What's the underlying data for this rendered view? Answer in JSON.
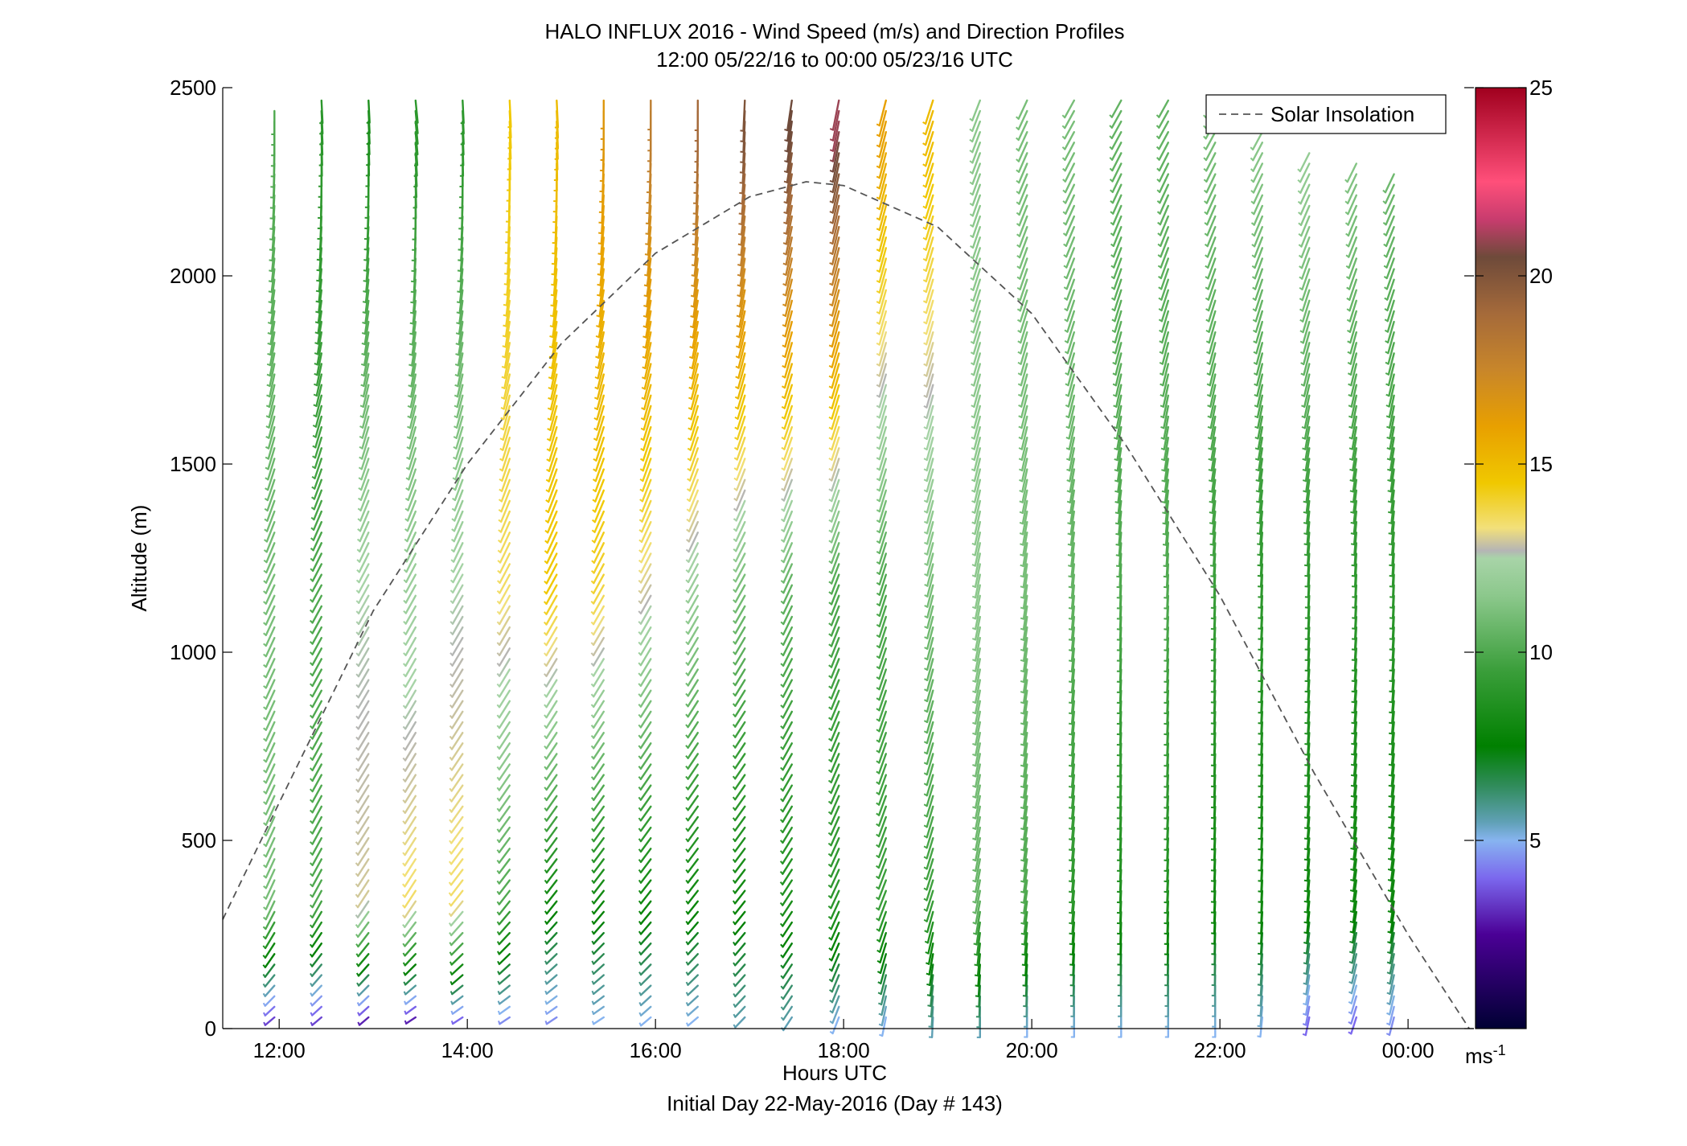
{
  "chart_data": {
    "type": "wind-barb-profile",
    "title": "HALO INFLUX 2016 - Wind Speed (m/s) and Direction Profiles",
    "subtitle": "12:00 05/22/16 to 00:00 05/23/16  UTC",
    "xlabel": "Hours UTC",
    "xsublabel": "Initial Day 22-May-2016 (Day # 143)",
    "ylabel": "Altitude (m)",
    "xlim": [
      11.4,
      24.7
    ],
    "ylim": [
      0,
      2500
    ],
    "xticks": [
      12,
      14,
      16,
      18,
      20,
      22,
      24
    ],
    "xtick_labels": [
      "12:00",
      "14:00",
      "16:00",
      "18:00",
      "20:00",
      "22:00",
      "00:00"
    ],
    "yticks": [
      0,
      500,
      1000,
      1500,
      2000,
      2500
    ],
    "ytick_labels": [
      "0",
      "500",
      "1000",
      "1500",
      "2000",
      "2500"
    ],
    "legend": {
      "label": "Solar Insolation",
      "placement": "top-right"
    },
    "colorbar": {
      "range": [
        0,
        25
      ],
      "ticks": [
        5,
        10,
        15,
        20,
        25
      ],
      "tick_labels": [
        "5",
        "10",
        "15",
        "20",
        "25"
      ],
      "unit_label": "ms",
      "unit_exponent": "-1",
      "stops": [
        {
          "v": 0,
          "c": "#000033"
        },
        {
          "v": 2.5,
          "c": "#4B0096"
        },
        {
          "v": 4,
          "c": "#7B68EE"
        },
        {
          "v": 5,
          "c": "#87B4F0"
        },
        {
          "v": 5.5,
          "c": "#5FA0B4"
        },
        {
          "v": 6.5,
          "c": "#2E8B57"
        },
        {
          "v": 7.5,
          "c": "#008000"
        },
        {
          "v": 9.5,
          "c": "#3A9E3A"
        },
        {
          "v": 11.5,
          "c": "#8CC88C"
        },
        {
          "v": 12.5,
          "c": "#A8D4A8"
        },
        {
          "v": 12.7,
          "c": "#B5B5B5"
        },
        {
          "v": 13.3,
          "c": "#F2E07A"
        },
        {
          "v": 14.5,
          "c": "#F0C800"
        },
        {
          "v": 16,
          "c": "#E8A000"
        },
        {
          "v": 17.5,
          "c": "#C8862A"
        },
        {
          "v": 19,
          "c": "#A56A3A"
        },
        {
          "v": 20.5,
          "c": "#6E4A3A"
        },
        {
          "v": 21.5,
          "c": "#C83C6E"
        },
        {
          "v": 22.5,
          "c": "#FF4F7A"
        },
        {
          "v": 25,
          "c": "#A0001E"
        }
      ]
    },
    "solar_insolation": {
      "style": "dashed",
      "color": "#555555",
      "x": [
        11.4,
        12.0,
        13.0,
        14.0,
        15.0,
        16.0,
        17.0,
        17.6,
        18.0,
        19.0,
        20.0,
        21.0,
        22.0,
        23.0,
        24.0,
        24.65
      ],
      "y": [
        290,
        600,
        1110,
        1500,
        1820,
        2060,
        2210,
        2250,
        2240,
        2130,
        1900,
        1550,
        1150,
        680,
        250,
        0
      ]
    },
    "wind_profiles": {
      "times": [
        11.95,
        12.45,
        12.95,
        13.45,
        13.95,
        14.45,
        14.95,
        15.45,
        15.95,
        16.45,
        16.95,
        17.45,
        17.95,
        18.45,
        18.95,
        19.45,
        19.95,
        20.45,
        20.95,
        21.45,
        21.95,
        22.45,
        22.95,
        23.45,
        23.85
      ],
      "top_altitude": [
        2450,
        2480,
        2480,
        2480,
        2480,
        2480,
        2480,
        2480,
        2480,
        2480,
        2480,
        2480,
        2480,
        2480,
        2480,
        2480,
        2480,
        2480,
        2480,
        2480,
        2470,
        2400,
        2350,
        2320,
        2270
      ],
      "speed_upper": [
        10,
        9,
        8.5,
        9,
        9,
        14.5,
        15,
        16.5,
        18,
        19,
        20,
        20.5,
        21,
        16,
        15,
        11.5,
        11,
        11,
        10.5,
        10.5,
        11,
        11.5,
        12,
        11.5,
        11
      ],
      "speed_mid": [
        11,
        10,
        12.5,
        12,
        12.5,
        13.5,
        14.5,
        14,
        13,
        12,
        11,
        10.5,
        10,
        10,
        11,
        11.5,
        11,
        10.5,
        10,
        10,
        9.5,
        9,
        9,
        9,
        9
      ],
      "speed_low": [
        11,
        10,
        13,
        13.5,
        13.5,
        10,
        8,
        8,
        8,
        8,
        8,
        8.5,
        9,
        9.5,
        9.5,
        10.5,
        10,
        9,
        8.5,
        8.5,
        8,
        8,
        8,
        8,
        8
      ],
      "speed_surface": [
        3.5,
        3.5,
        3,
        3,
        4,
        4.5,
        4.5,
        5,
        5,
        5,
        5.5,
        5.5,
        5,
        5,
        5.5,
        5.5,
        5,
        5,
        5,
        5,
        5,
        5,
        4,
        4,
        4.5
      ],
      "dir_upper": [
        180,
        175,
        175,
        170,
        175,
        175,
        175,
        180,
        180,
        180,
        185,
        195,
        200,
        205,
        210,
        215,
        220,
        225,
        225,
        225,
        225,
        225,
        225,
        225,
        225
      ],
      "dir_mid": [
        220,
        225,
        225,
        225,
        225,
        225,
        225,
        225,
        225,
        225,
        225,
        220,
        215,
        210,
        205,
        200,
        195,
        190,
        185,
        185,
        185,
        185,
        185,
        185,
        185
      ],
      "dir_low": [
        220,
        225,
        230,
        230,
        235,
        235,
        235,
        235,
        235,
        235,
        235,
        230,
        220,
        215,
        210,
        200,
        195,
        190,
        185,
        185,
        185,
        185,
        190,
        195,
        195
      ],
      "dir_surface": [
        245,
        245,
        245,
        250,
        250,
        250,
        250,
        250,
        245,
        245,
        240,
        230,
        215,
        200,
        185,
        180,
        180,
        180,
        180,
        180,
        180,
        190,
        200,
        210,
        205
      ]
    }
  }
}
